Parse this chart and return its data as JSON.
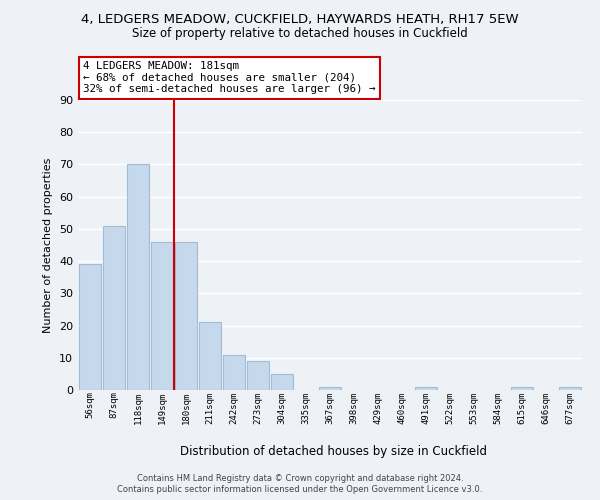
{
  "title": "4, LEDGERS MEADOW, CUCKFIELD, HAYWARDS HEATH, RH17 5EW",
  "subtitle": "Size of property relative to detached houses in Cuckfield",
  "xlabel": "Distribution of detached houses by size in Cuckfield",
  "ylabel": "Number of detached properties",
  "categories": [
    "56sqm",
    "87sqm",
    "118sqm",
    "149sqm",
    "180sqm",
    "211sqm",
    "242sqm",
    "273sqm",
    "304sqm",
    "335sqm",
    "367sqm",
    "398sqm",
    "429sqm",
    "460sqm",
    "491sqm",
    "522sqm",
    "553sqm",
    "584sqm",
    "615sqm",
    "646sqm",
    "677sqm"
  ],
  "values": [
    39,
    51,
    70,
    46,
    46,
    21,
    11,
    9,
    5,
    0,
    1,
    0,
    0,
    0,
    1,
    0,
    0,
    0,
    1,
    0,
    1
  ],
  "bar_color": "#c6d9ec",
  "bar_edge_color": "#a0bcd4",
  "ylim": [
    0,
    90
  ],
  "yticks": [
    0,
    10,
    20,
    30,
    40,
    50,
    60,
    70,
    80,
    90
  ],
  "vline_idx": 4,
  "annotation_title": "4 LEDGERS MEADOW: 181sqm",
  "annotation_line1": "← 68% of detached houses are smaller (204)",
  "annotation_line2": "32% of semi-detached houses are larger (96) →",
  "footer1": "Contains HM Land Registry data © Crown copyright and database right 2024.",
  "footer2": "Contains public sector information licensed under the Open Government Licence v3.0.",
  "background_color": "#eef2f7"
}
